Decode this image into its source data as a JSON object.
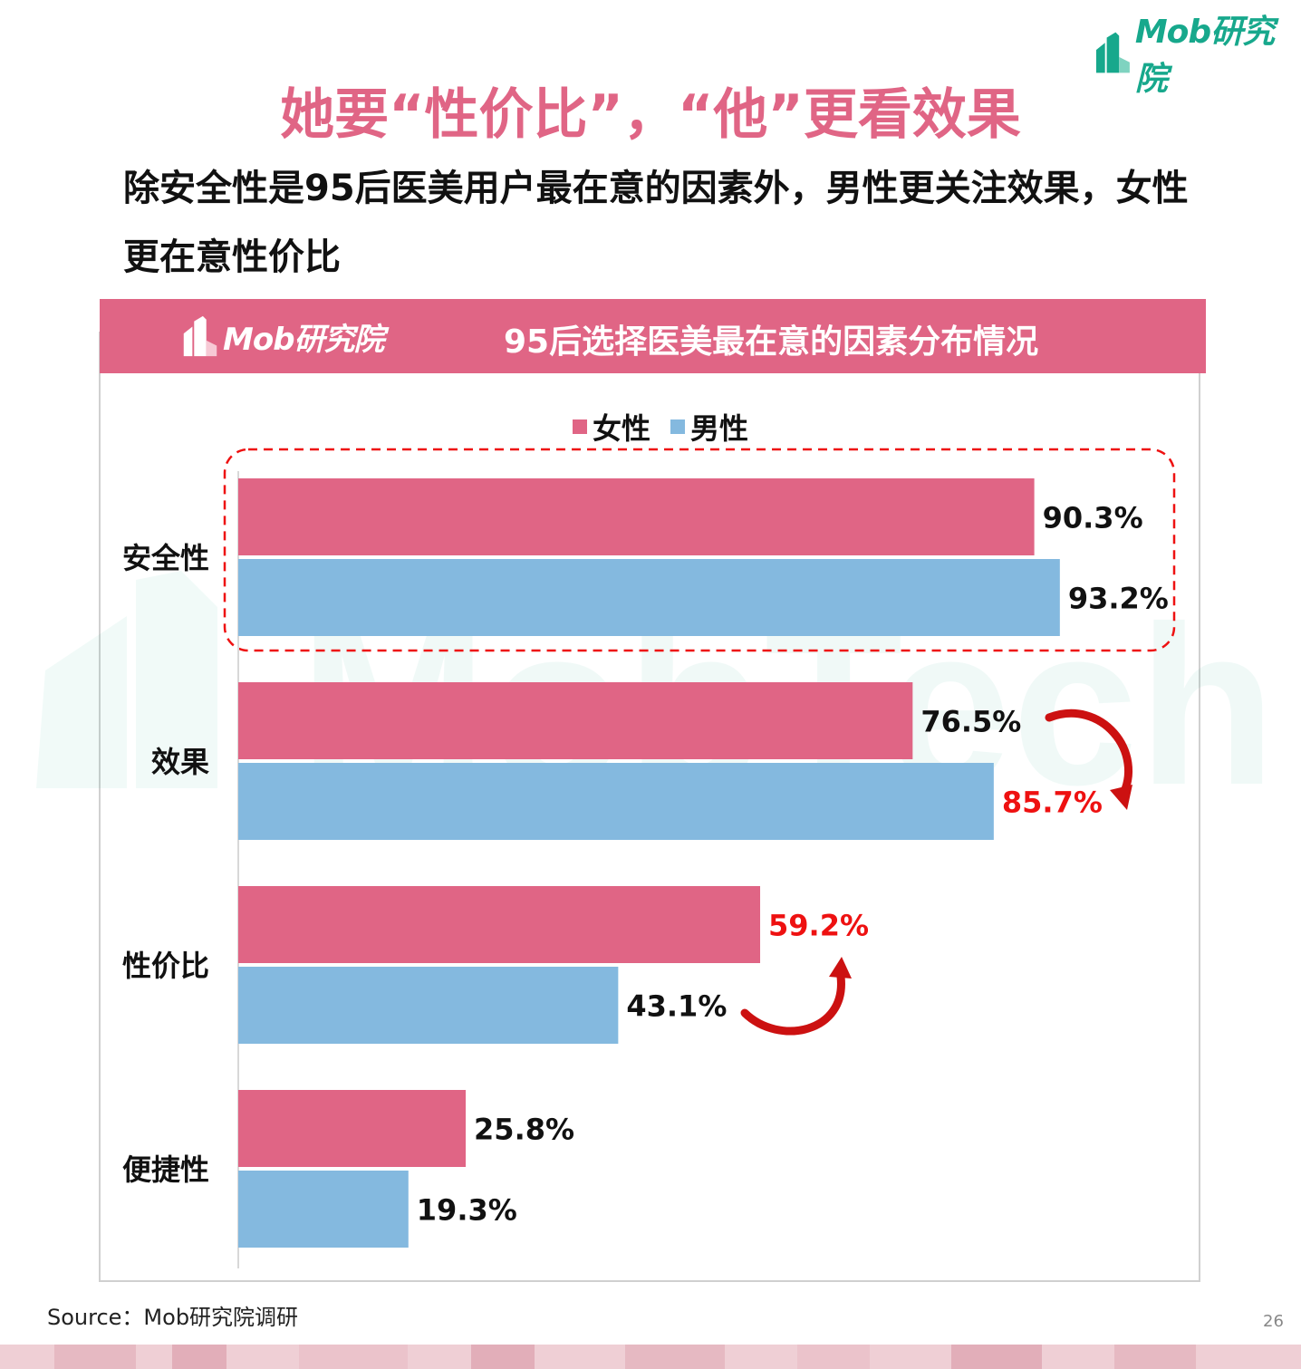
{
  "brand": {
    "logo_text": "Mob研究院",
    "colors": {
      "green": "#17a88c",
      "pink": "#e06585",
      "blue": "#84b9df",
      "highlight_red": "#ee1111"
    }
  },
  "page": {
    "main_title": "她要“性价比”，“他”更看效果",
    "subtitle": "除安全性是95后医美用户最在意的因素外，男性更关注效果，女性更在意性价比",
    "source": "Source：Mob研究院调研",
    "page_number": "26"
  },
  "chart_header": {
    "logo_text": "Mob研究院",
    "title": "95后选择医美最在意的因素分布情况"
  },
  "watermark": {
    "text": "MobTech 袤博"
  },
  "chart_data": {
    "type": "bar",
    "orientation": "horizontal",
    "title": "95后选择医美最在意的因素分布情况",
    "categories": [
      "安全性",
      "效果",
      "性价比",
      "便捷性"
    ],
    "series": [
      {
        "name": "女性",
        "color": "#e06585",
        "values": [
          90.3,
          76.5,
          59.2,
          25.8
        ],
        "labels": [
          "90.3%",
          "76.5%",
          "59.2%",
          "25.8%"
        ]
      },
      {
        "name": "男性",
        "color": "#84b9df",
        "values": [
          93.2,
          85.7,
          43.1,
          19.3
        ],
        "labels": [
          "93.2%",
          "85.7%",
          "43.1%",
          "19.3%"
        ]
      }
    ],
    "highlighted_labels": [
      "效果:男性",
      "性价比:女性"
    ],
    "highlight_box_category": "安全性",
    "legend_position": "top",
    "xlim": [
      0,
      100
    ],
    "grid": false,
    "unit": "%"
  }
}
